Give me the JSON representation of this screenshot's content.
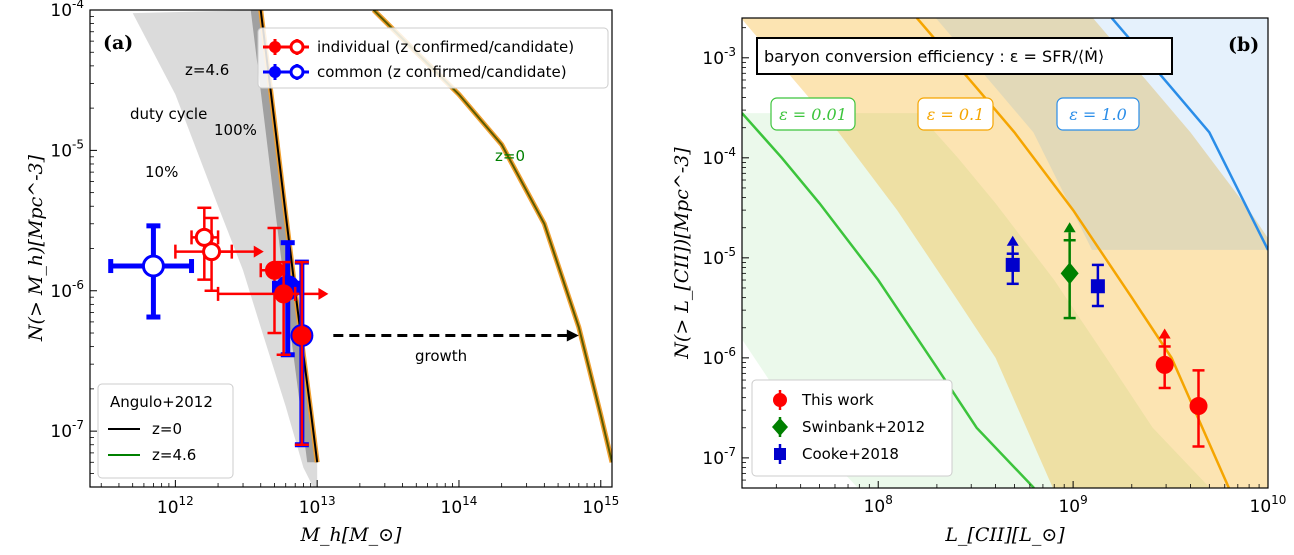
{
  "chart_data": [
    {
      "type": "scatter",
      "panel_label": "(a)",
      "xlabel": "M_h[M_⊙]",
      "ylabel": "N(> M_h)[Mpc^-3]",
      "xscale": "log",
      "yscale": "log",
      "xlim": [
        250000000000.0,
        1200000000000000.0
      ],
      "ylim": [
        4e-08,
        0.0001
      ],
      "x_ticks": [
        {
          "v": 1000000000000.0,
          "b": "10",
          "e": "12"
        },
        {
          "v": 10000000000000.0,
          "b": "10",
          "e": "13"
        },
        {
          "v": 100000000000000.0,
          "b": "10",
          "e": "14"
        },
        {
          "v": 1000000000000000.0,
          "b": "10",
          "e": "15"
        }
      ],
      "y_ticks": [
        {
          "v": 0.0001,
          "b": "10",
          "e": "-4"
        },
        {
          "v": 1e-05,
          "b": "10",
          "e": "-5"
        },
        {
          "v": 1e-06,
          "b": "10",
          "e": "-6"
        },
        {
          "v": 1e-07,
          "b": "10",
          "e": "-7"
        }
      ],
      "annotations": {
        "z46": "z=4.6",
        "duty_cycle": "duty cycle",
        "p100": "100%",
        "p10": "10%",
        "z0": "z=0",
        "growth": "growth"
      },
      "legend_top": [
        {
          "label": "individual (z confirmed/candidate)",
          "color": "#ff0000"
        },
        {
          "label": "common (z confirmed/candidate)",
          "color": "#0000ff"
        }
      ],
      "legend_bottom": {
        "title": "Angulo+2012",
        "items": [
          {
            "label": "z=0",
            "color": "#000000"
          },
          {
            "label": "z=4.6",
            "color": "#008000"
          }
        ]
      },
      "curves": {
        "z46": {
          "x": [
            4000000000000.0,
            5000000000000.0,
            6000000000000.0,
            7000000000000.0,
            8000000000000.0,
            9000000000000.0,
            10000000000000.0
          ],
          "y": [
            0.0001,
            1.6e-05,
            3.5e-06,
            1e-06,
            3.5e-07,
            1.4e-07,
            6e-08
          ]
        },
        "z0": {
          "x": [
            25000000000000.0,
            50000000000000.0,
            100000000000000.0,
            200000000000000.0,
            400000000000000.0,
            700000000000000.0,
            1000000000000000.0,
            1200000000000000.0
          ],
          "y": [
            0.0001,
            5e-05,
            2.5e-05,
            1.1e-05,
            3e-06,
            5.5e-07,
            1.3e-07,
            6e-08
          ]
        }
      },
      "duty_band": {
        "x": [
          500000000000.0,
          1000000000000.0,
          2000000000000.0,
          3000000000000.0,
          4000000000000.0,
          6000000000000.0,
          8000000000000.0,
          10000000000000.0
        ],
        "y": [
          9.5e-05,
          2.5e-05,
          4e-06,
          1.4e-06,
          5.5e-07,
          1.5e-07,
          5.5e-08,
          3.5e-08
        ]
      },
      "points": [
        {
          "x": 700000000000.0,
          "y": 1.5e-06,
          "xlo": 350000000000.0,
          "xhi": 1300000000000.0,
          "ylo": 6.5e-07,
          "yhi": 2.9e-06,
          "color": "#0000ff",
          "filled": false,
          "r": 10
        },
        {
          "x": 1600000000000.0,
          "y": 2.4e-06,
          "xlo": 1300000000000.0,
          "xhi": 2000000000000.0,
          "ylo": 1.2e-06,
          "yhi": 3.9e-06,
          "color": "#ff0000",
          "filled": false,
          "r": 8
        },
        {
          "x": 1800000000000.0,
          "y": 1.9e-06,
          "xlo": 1000000000000.0,
          "xhi": 2500000000000.0,
          "ylo": 1e-06,
          "yhi": 3.3e-06,
          "color": "#ff0000",
          "filled": false,
          "r": 8,
          "right_arrow": 4200000000000.0
        },
        {
          "x": 5000000000000.0,
          "y": 1.4e-06,
          "xlo": 4000000000000.0,
          "xhi": 6000000000000.0,
          "ylo": 5e-07,
          "yhi": 2.8e-06,
          "color": "#ff0000",
          "filled": true,
          "r": 8
        },
        {
          "x": 6200000000000.0,
          "y": 1.05e-06,
          "xlo": 5000000000000.0,
          "xhi": 7500000000000.0,
          "ylo": 3.5e-07,
          "yhi": 2.2e-06,
          "color": "#0000ff",
          "filled": true,
          "r": 11
        },
        {
          "x": 5800000000000.0,
          "y": 9.5e-07,
          "xlo": 2000000000000.0,
          "xhi": 7000000000000.0,
          "ylo": 3.5e-07,
          "yhi": 1.6e-06,
          "color": "#ff0000",
          "filled": true,
          "r": 8,
          "right_arrow": 12000000000000.0
        },
        {
          "x": 7800000000000.0,
          "y": 4.8e-07,
          "xlo": 7000000000000.0,
          "xhi": 8600000000000.0,
          "ylo": 8e-08,
          "yhi": 1.6e-06,
          "color": "#0000ff",
          "filled": true,
          "r": 10
        },
        {
          "x": 7800000000000.0,
          "y": 4.8e-07,
          "xlo": 7400000000000.0,
          "xhi": 8200000000000.0,
          "ylo": 8e-08,
          "yhi": 1.6e-06,
          "color": "#ff0000",
          "filled": true,
          "r": 8
        }
      ],
      "growth_arrow": {
        "x0": 13000000000000.0,
        "x1": 700000000000000.0,
        "y": 4.8e-07
      }
    },
    {
      "type": "line",
      "panel_label": "(b)",
      "title_box": "baryon conversion efficiency : ε = SFR/⟨Ṁ⟩",
      "xlabel": "L_[CII][L_⊙]",
      "ylabel": "N(> L_[CII])[Mpc^-3]",
      "xscale": "log",
      "yscale": "log",
      "xlim": [
        20000000.0,
        10000000000.0
      ],
      "ylim": [
        5e-08,
        0.0025
      ],
      "x_ticks": [
        {
          "v": 100000000.0,
          "b": "10",
          "e": "8"
        },
        {
          "v": 1000000000.0,
          "b": "10",
          "e": "9"
        },
        {
          "v": 10000000000.0,
          "b": "10",
          "e": "10"
        }
      ],
      "y_ticks": [
        {
          "v": 0.001,
          "b": "10",
          "e": "-3"
        },
        {
          "v": 0.0001,
          "b": "10",
          "e": "-4"
        },
        {
          "v": 1e-05,
          "b": "10",
          "e": "-5"
        },
        {
          "v": 1e-06,
          "b": "10",
          "e": "-6"
        },
        {
          "v": 1e-07,
          "b": "10",
          "e": "-7"
        }
      ],
      "series": [
        {
          "name": "ε = 0.01",
          "color": "#3cc43c",
          "x": [
            20000000.0,
            32000000.0,
            50000000.0,
            100000000.0,
            200000000.0,
            320000000.0,
            630000000.0
          ],
          "y": [
            0.00028,
            0.0001,
            3.5e-05,
            6e-06,
            8e-07,
            2e-07,
            5e-08
          ]
        },
        {
          "name": "ε = 0.1",
          "color": "#f5a500",
          "x": [
            158000000.0,
            320000000.0,
            500000000.0,
            1000000000.0,
            2000000000.0,
            3200000000.0,
            6300000000.0
          ],
          "y": [
            0.0025,
            0.0005,
            0.00018,
            3e-05,
            4e-06,
            1e-06,
            5e-08
          ]
        },
        {
          "name": "ε = 1.0",
          "color": "#2a8de8",
          "x": [
            1580000000.0,
            3200000000.0,
            5000000000.0,
            10000000000.0
          ],
          "y": [
            0.0025,
            0.0005,
            0.00018,
            1.2e-05
          ]
        }
      ],
      "band_factor": 8,
      "series_labels": [
        {
          "text": "ε = 0.01",
          "color": "#3cc43c"
        },
        {
          "text": "ε = 0.1",
          "color": "#f5a500"
        },
        {
          "text": "ε = 1.0",
          "color": "#2a8de8"
        }
      ],
      "legend": [
        {
          "label": "This work",
          "color": "#ff0000",
          "marker": "circle"
        },
        {
          "label": "Swinbank+2012",
          "color": "#008000",
          "marker": "diamond"
        },
        {
          "label": "Cooke+2018",
          "color": "#0000cc",
          "marker": "square"
        }
      ],
      "points": [
        {
          "x": 490000000.0,
          "y": 8.5e-06,
          "ylo": 5.5e-06,
          "yhi": 1.1e-05,
          "color": "#0000cc",
          "marker": "square",
          "up_arrow": true
        },
        {
          "x": 960000000.0,
          "y": 7e-06,
          "ylo": 2.5e-06,
          "yhi": 1.5e-05,
          "color": "#008000",
          "marker": "diamond",
          "up_arrow": true
        },
        {
          "x": 1340000000.0,
          "y": 5.2e-06,
          "ylo": 3.3e-06,
          "yhi": 8.5e-06,
          "color": "#0000cc",
          "marker": "square",
          "up_arrow": false
        },
        {
          "x": 2950000000.0,
          "y": 8.5e-07,
          "ylo": 5e-07,
          "yhi": 1.3e-06,
          "color": "#ff0000",
          "marker": "circle",
          "up_arrow": true
        },
        {
          "x": 4400000000.0,
          "y": 3.3e-07,
          "ylo": 1.3e-07,
          "yhi": 7.5e-07,
          "color": "#ff0000",
          "marker": "circle",
          "up_arrow": false
        }
      ]
    }
  ]
}
